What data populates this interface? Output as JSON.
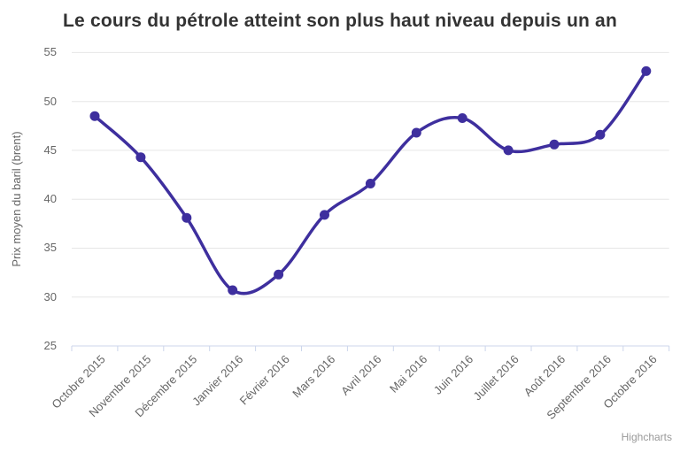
{
  "chart_data": {
    "type": "line",
    "subtype": "spline",
    "title": "Le cours du pétrole atteint son plus haut niveau depuis un an",
    "xlabel": "",
    "ylabel": "Prix moyen du baril (brent)",
    "categories": [
      "Octobre 2015",
      "Novembre 2015",
      "Décembre 2015",
      "Janvier 2016",
      "Février 2016",
      "Mars 2016",
      "Avril 2016",
      "Mai 2016",
      "Juin 2016",
      "Juillet 2016",
      "Août 2016",
      "Septembre 2016",
      "Octobre 2016"
    ],
    "values": [
      48.5,
      44.3,
      38.1,
      30.7,
      32.3,
      38.4,
      41.6,
      46.8,
      48.3,
      45.0,
      45.6,
      46.6,
      53.1
    ],
    "ylim": [
      25,
      55
    ],
    "yticks": [
      25,
      30,
      35,
      40,
      45,
      50,
      55
    ],
    "grid": true,
    "legend": false,
    "line_color": "#3e2f9e",
    "marker_color": "#3e2f9e",
    "grid_color": "#e6e6e6",
    "axis_line_color": "#ccd6eb",
    "label_color": "#666666",
    "title_color": "#333333"
  },
  "credits": {
    "label": "Highcharts"
  }
}
